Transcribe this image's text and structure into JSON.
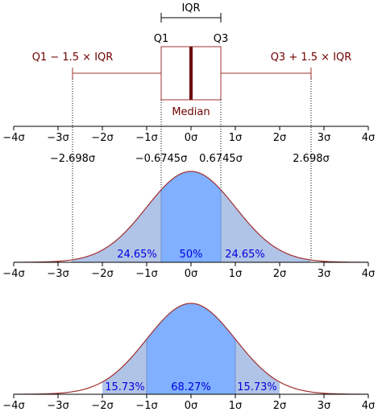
{
  "boxplot": {
    "iqr_label": "IQR",
    "q1_label": "Q1",
    "q3_label": "Q3",
    "median_label": "Median",
    "lower_whisker_label": "Q1 − 1.5 × IQR",
    "upper_whisker_label": "Q3 + 1.5 × IQR"
  },
  "axis_ticks": [
    "−4σ",
    "−3σ",
    "−2σ",
    "−1σ",
    "0σ",
    "1σ",
    "2σ",
    "3σ",
    "4σ"
  ],
  "axis_tick_values": [
    -4,
    -3,
    -2,
    -1,
    0,
    1,
    2,
    3,
    4
  ],
  "quartile_marks": [
    {
      "label": "−2.698σ",
      "value": -2.698
    },
    {
      "label": "−0.6745σ",
      "value": -0.6745
    },
    {
      "label": "0.6745σ",
      "value": 0.6745
    },
    {
      "label": "2.698σ",
      "value": 2.698
    }
  ],
  "panel1_regions": [
    {
      "label": "24.65%",
      "from": -2.698,
      "to": -0.6745
    },
    {
      "label": "50%",
      "from": -0.6745,
      "to": 0.6745
    },
    {
      "label": "24.65%",
      "from": 0.6745,
      "to": 2.698
    }
  ],
  "panel2_regions": [
    {
      "label": "15.73%",
      "from": -2,
      "to": -1
    },
    {
      "label": "68.27%",
      "from": -1,
      "to": 1
    },
    {
      "label": "15.73%",
      "from": 1,
      "to": 2
    }
  ],
  "colors": {
    "curve": "#a03030",
    "light_fill": "#b0c4e8",
    "dark_fill": "#80b0ff",
    "box": "#6e0000",
    "percent_text": "#0000e0"
  }
}
